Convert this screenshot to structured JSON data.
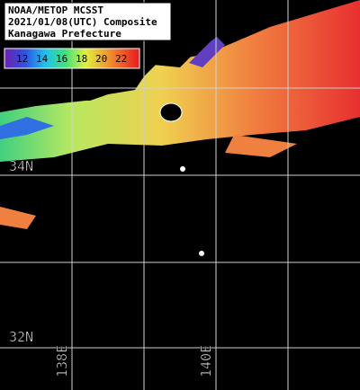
{
  "header": {
    "lines": [
      "NOAA/METOP MCSST",
      "2021/01/08(UTC) Composite",
      "Kanagawa Prefecture"
    ]
  },
  "colorbar": {
    "labels": [
      12,
      14,
      16,
      18,
      20,
      22
    ]
  },
  "grid": {
    "lat_labels": [
      "34N",
      "32N"
    ],
    "lon_labels": [
      "138E",
      "140E"
    ]
  }
}
